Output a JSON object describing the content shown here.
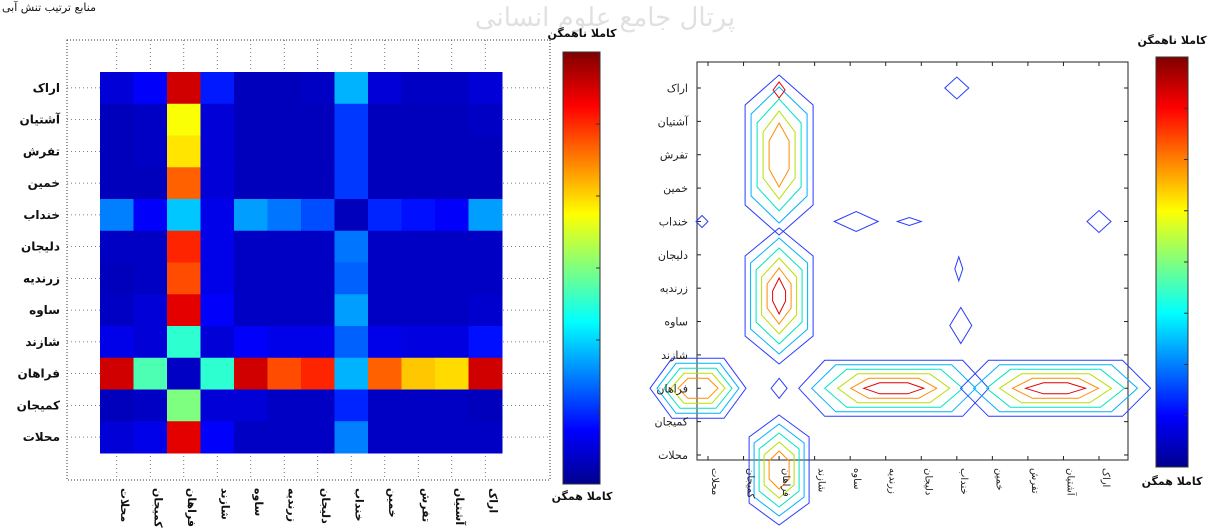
{
  "header_text": "منابع ترتیب تنش آبی",
  "watermark": "پرتال جامع علوم انسانی",
  "chart_data": [
    {
      "type": "heatmap",
      "title": "",
      "xlabel": "",
      "ylabel": "",
      "grid": true,
      "legend": "none",
      "colormap": "jet",
      "colorbar": {
        "top_label": "کاملا ناهمگن",
        "bottom_label": "کاملا همگن"
      },
      "row_labels": [
        "اراک",
        "آشتیان",
        "تفرش",
        "خمین",
        "خنداب",
        "دلیجان",
        "زرندیه",
        "ساوه",
        "شازند",
        "فراهان",
        "کمیجان",
        "محلات"
      ],
      "col_labels": [
        "محلات",
        "کمیجان",
        "فراهان",
        "شازند",
        "ساوه",
        "زرندیه",
        "دلیجان",
        "خنداب",
        "خمین",
        "تفرش",
        "آشتیان",
        "اراک"
      ],
      "values": [
        [
          0.08,
          0.12,
          0.92,
          0.15,
          0.05,
          0.05,
          0.06,
          0.3,
          0.08,
          0.06,
          0.06,
          0.08
        ],
        [
          0.05,
          0.06,
          0.62,
          0.08,
          0.05,
          0.05,
          0.05,
          0.18,
          0.05,
          0.05,
          0.05,
          0.06
        ],
        [
          0.05,
          0.06,
          0.65,
          0.08,
          0.05,
          0.05,
          0.05,
          0.18,
          0.05,
          0.05,
          0.05,
          0.05
        ],
        [
          0.05,
          0.05,
          0.78,
          0.08,
          0.05,
          0.05,
          0.05,
          0.18,
          0.05,
          0.05,
          0.05,
          0.05
        ],
        [
          0.25,
          0.12,
          0.32,
          0.1,
          0.28,
          0.24,
          0.2,
          0.05,
          0.16,
          0.14,
          0.12,
          0.28
        ],
        [
          0.06,
          0.06,
          0.84,
          0.1,
          0.06,
          0.06,
          0.06,
          0.24,
          0.06,
          0.06,
          0.06,
          0.06
        ],
        [
          0.05,
          0.06,
          0.8,
          0.1,
          0.06,
          0.06,
          0.06,
          0.22,
          0.06,
          0.06,
          0.06,
          0.06
        ],
        [
          0.06,
          0.08,
          0.9,
          0.12,
          0.06,
          0.06,
          0.06,
          0.28,
          0.06,
          0.06,
          0.06,
          0.07
        ],
        [
          0.1,
          0.08,
          0.42,
          0.08,
          0.12,
          0.1,
          0.1,
          0.22,
          0.1,
          0.09,
          0.09,
          0.14
        ],
        [
          0.92,
          0.45,
          0.06,
          0.42,
          0.92,
          0.8,
          0.84,
          0.3,
          0.78,
          0.68,
          0.66,
          0.92
        ],
        [
          0.05,
          0.06,
          0.5,
          0.08,
          0.08,
          0.06,
          0.06,
          0.16,
          0.06,
          0.06,
          0.06,
          0.05
        ],
        [
          0.08,
          0.1,
          0.9,
          0.12,
          0.06,
          0.06,
          0.06,
          0.25,
          0.06,
          0.06,
          0.06,
          0.06
        ]
      ]
    },
    {
      "type": "contour",
      "title": "",
      "xlabel": "",
      "ylabel": "",
      "grid": false,
      "legend": "none",
      "colormap": "jet",
      "colorbar": {
        "top_label": "کاملا ناهمگن",
        "bottom_label": "کاملا همگن"
      },
      "row_labels": [
        "اراک",
        "آشتیان",
        "تفرش",
        "خمین",
        "خنداب",
        "دلیجان",
        "زرندیه",
        "ساوه",
        "شازند",
        "فراهان",
        "کمیجان",
        "محلات"
      ],
      "col_labels": [
        "محلات",
        "کمیجان",
        "فراهان",
        "شازند",
        "ساوه",
        "زرندیه",
        "دلیجان",
        "خنداب",
        "خمین",
        "تفرش",
        "آشتیان",
        "اراک"
      ],
      "contour_levels": 6
    }
  ]
}
